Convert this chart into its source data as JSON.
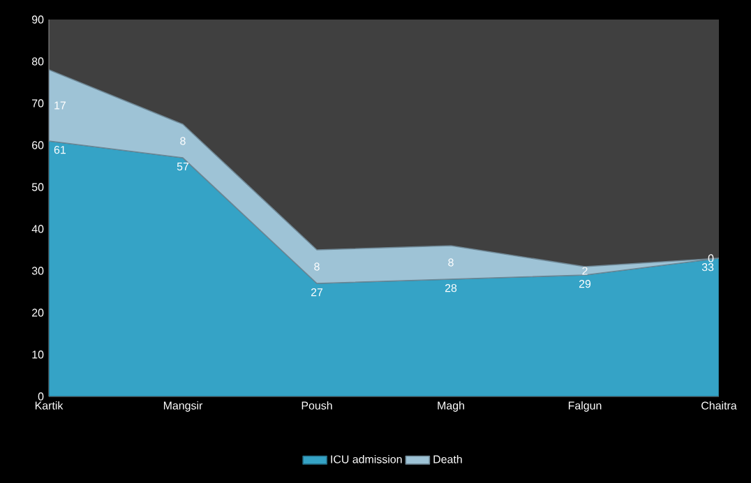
{
  "chart_data": {
    "type": "area",
    "stacked": true,
    "categories": [
      "Kartik",
      "Mangsir",
      "Poush",
      "Magh",
      "Falgun",
      "Chaitra"
    ],
    "series": [
      {
        "name": "ICU admission",
        "color": "#35a3c6",
        "values": [
          61,
          57,
          27,
          28,
          29,
          33
        ]
      },
      {
        "name": "Death",
        "color": "#9ec3d6",
        "values": [
          17,
          8,
          8,
          8,
          2,
          0
        ]
      }
    ],
    "ylim": [
      0,
      90
    ],
    "yticks": [
      0,
      10,
      20,
      30,
      40,
      50,
      60,
      70,
      80,
      90
    ],
    "data_labels": true,
    "legend": "bottom",
    "grid": false
  }
}
